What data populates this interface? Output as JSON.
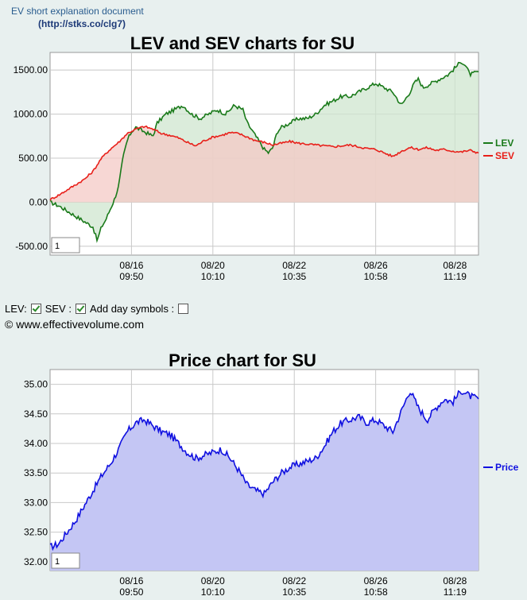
{
  "header": {
    "doc_title": "EV short explanation document",
    "doc_link": "http://stks.co/clg7",
    "paren_open": "(",
    "paren_close": ")"
  },
  "controls": {
    "lev_label": "LEV:",
    "sev_label": "SEV :",
    "day_symbols_label": "Add day symbols :",
    "lev_checked": true,
    "sev_checked": true,
    "day_symbols_checked": false
  },
  "copyright": "© www.effectivevolume.com",
  "colors": {
    "lev": "#1a7a1a",
    "sev": "#e8201a",
    "price": "#1010e0",
    "lev_fill": "#cfe6cf",
    "sev_fill": "#f4c9c6",
    "overlap_fill": "#cdb8a2",
    "price_fill": "#c4c6f4",
    "plot_bg": "#ffffff",
    "grid": "#c8c8c8"
  },
  "chart_data": [
    {
      "type": "area",
      "title": "LEV and SEV charts for SU",
      "ylim": [
        -600,
        1700
      ],
      "yticks": [
        -500,
        0,
        500,
        1000,
        1500
      ],
      "ytick_labels": [
        "-500.00",
        "0.00",
        "500.00",
        "1000.00",
        "1500.00"
      ],
      "xticks": [
        {
          "x": 0.19,
          "date": "08/16",
          "time": "09:50"
        },
        {
          "x": 0.38,
          "date": "08/20",
          "time": "10:10"
        },
        {
          "x": 0.57,
          "date": "08/22",
          "time": "10:35"
        },
        {
          "x": 0.76,
          "date": "08/26",
          "time": "10:58"
        },
        {
          "x": 0.945,
          "date": "08/28",
          "time": "11:19"
        }
      ],
      "legend": [
        {
          "name": "LEV"
        },
        {
          "name": "SEV"
        }
      ],
      "page_input": "1",
      "series": [
        {
          "name": "LEV",
          "x": [
            0,
            0.02,
            0.04,
            0.06,
            0.08,
            0.1,
            0.11,
            0.12,
            0.13,
            0.15,
            0.16,
            0.17,
            0.18,
            0.19,
            0.2,
            0.22,
            0.24,
            0.25,
            0.27,
            0.29,
            0.31,
            0.33,
            0.35,
            0.37,
            0.39,
            0.41,
            0.43,
            0.45,
            0.46,
            0.48,
            0.5,
            0.51,
            0.52,
            0.53,
            0.54,
            0.56,
            0.58,
            0.6,
            0.62,
            0.64,
            0.66,
            0.68,
            0.7,
            0.72,
            0.74,
            0.76,
            0.78,
            0.8,
            0.82,
            0.84,
            0.85,
            0.86,
            0.87,
            0.89,
            0.91,
            0.93,
            0.95,
            0.96,
            0.97,
            0.98,
            1
          ],
          "values": [
            0,
            -40,
            -100,
            -160,
            -220,
            -280,
            -440,
            -280,
            -200,
            30,
            180,
            500,
            700,
            800,
            850,
            800,
            750,
            900,
            1000,
            1050,
            1100,
            1000,
            950,
            1000,
            1050,
            1000,
            1100,
            1050,
            900,
            750,
            600,
            560,
            620,
            800,
            850,
            900,
            950,
            950,
            1000,
            1100,
            1150,
            1200,
            1200,
            1250,
            1300,
            1350,
            1300,
            1250,
            1100,
            1250,
            1350,
            1400,
            1300,
            1350,
            1400,
            1450,
            1550,
            1600,
            1550,
            1450,
            1480
          ]
        },
        {
          "name": "SEV",
          "x": [
            0,
            0.02,
            0.04,
            0.06,
            0.08,
            0.1,
            0.12,
            0.14,
            0.16,
            0.18,
            0.2,
            0.22,
            0.24,
            0.26,
            0.28,
            0.3,
            0.32,
            0.34,
            0.36,
            0.38,
            0.4,
            0.42,
            0.44,
            0.46,
            0.48,
            0.5,
            0.52,
            0.54,
            0.56,
            0.58,
            0.6,
            0.62,
            0.64,
            0.66,
            0.68,
            0.7,
            0.72,
            0.74,
            0.76,
            0.78,
            0.8,
            0.82,
            0.84,
            0.86,
            0.88,
            0.9,
            0.92,
            0.94,
            0.96,
            0.98,
            1
          ],
          "values": [
            30,
            80,
            140,
            200,
            260,
            350,
            500,
            600,
            680,
            780,
            830,
            860,
            830,
            780,
            760,
            730,
            680,
            640,
            700,
            740,
            760,
            790,
            780,
            740,
            700,
            680,
            650,
            670,
            690,
            670,
            660,
            650,
            640,
            630,
            640,
            650,
            630,
            610,
            600,
            560,
            520,
            580,
            620,
            600,
            620,
            590,
            600,
            580,
            570,
            590,
            560
          ]
        }
      ]
    },
    {
      "type": "area",
      "title": "Price chart for SU",
      "ylim": [
        31.85,
        35.25
      ],
      "yticks": [
        32.0,
        32.5,
        33.0,
        33.5,
        34.0,
        34.5,
        35.0
      ],
      "ytick_labels": [
        "32.00",
        "32.50",
        "33.00",
        "33.50",
        "34.00",
        "34.50",
        "35.00"
      ],
      "xticks": [
        {
          "x": 0.19,
          "date": "08/16",
          "time": "09:50"
        },
        {
          "x": 0.38,
          "date": "08/20",
          "time": "10:10"
        },
        {
          "x": 0.57,
          "date": "08/22",
          "time": "10:35"
        },
        {
          "x": 0.76,
          "date": "08/26",
          "time": "10:58"
        },
        {
          "x": 0.945,
          "date": "08/28",
          "time": "11:19"
        }
      ],
      "legend": [
        {
          "name": "Price"
        }
      ],
      "page_input": "1",
      "series": [
        {
          "name": "Price",
          "x": [
            0,
            0.02,
            0.04,
            0.06,
            0.08,
            0.1,
            0.12,
            0.14,
            0.16,
            0.18,
            0.2,
            0.22,
            0.24,
            0.26,
            0.28,
            0.3,
            0.32,
            0.34,
            0.36,
            0.38,
            0.4,
            0.42,
            0.44,
            0.46,
            0.48,
            0.5,
            0.52,
            0.54,
            0.56,
            0.58,
            0.6,
            0.62,
            0.64,
            0.66,
            0.68,
            0.7,
            0.72,
            0.74,
            0.76,
            0.78,
            0.8,
            0.82,
            0.84,
            0.86,
            0.88,
            0.9,
            0.92,
            0.94,
            0.96,
            0.98,
            1
          ],
          "values": [
            32.25,
            32.3,
            32.5,
            32.7,
            32.95,
            33.2,
            33.45,
            33.65,
            33.9,
            34.2,
            34.35,
            34.4,
            34.3,
            34.2,
            34.15,
            34.0,
            33.85,
            33.75,
            33.8,
            33.85,
            33.9,
            33.75,
            33.55,
            33.3,
            33.2,
            33.15,
            33.35,
            33.5,
            33.6,
            33.65,
            33.7,
            33.75,
            33.95,
            34.2,
            34.35,
            34.4,
            34.45,
            34.35,
            34.4,
            34.3,
            34.2,
            34.55,
            34.9,
            34.6,
            34.4,
            34.6,
            34.75,
            34.7,
            34.9,
            34.8,
            34.75
          ]
        }
      ]
    }
  ]
}
